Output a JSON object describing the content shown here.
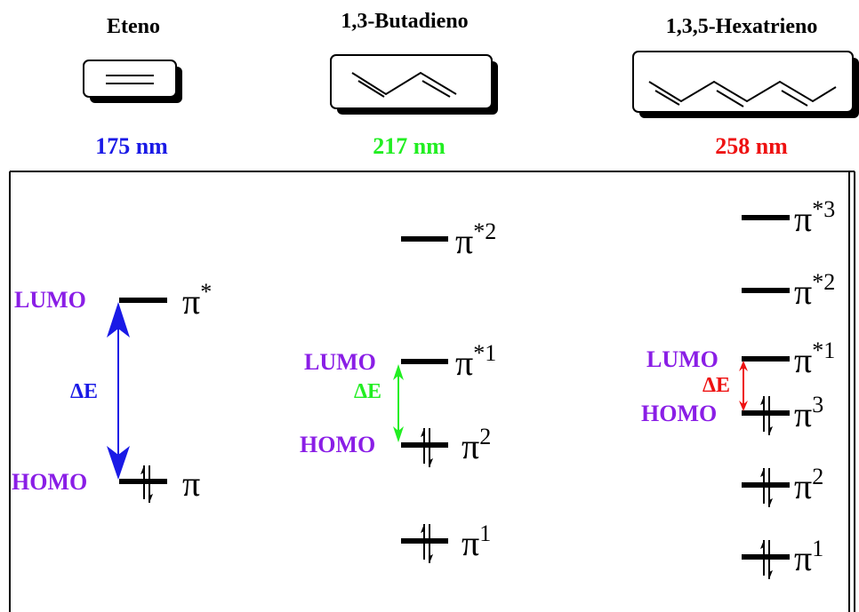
{
  "colors": {
    "ethene": "#1a1ae6",
    "butadiene": "#22ee22",
    "hexatriene": "#ee1111",
    "fmo": "#8a1ee6",
    "ink": "#000000"
  },
  "molecules": [
    {
      "name": "Eteno",
      "wavelength": "175 nm",
      "structure": "double-bond-icon"
    },
    {
      "name": "1,3-Butadieno",
      "wavelength": "217 nm",
      "structure": "butadiene-skeleton-icon"
    },
    {
      "name": "1,3,5-Hexatrieno",
      "wavelength": "258 nm",
      "structure": "hexatriene-skeleton-icon"
    }
  ],
  "diagram": {
    "lumo_label": "LUMO",
    "homo_label": "HOMO",
    "delta_e_label": "ΔE",
    "ethene": {
      "levels": [
        {
          "symbol": "π",
          "sup": "*",
          "occupied": false
        },
        {
          "symbol": "π",
          "sup": "",
          "occupied": true
        }
      ]
    },
    "butadiene": {
      "levels": [
        {
          "symbol": "π",
          "sup": "*2",
          "occupied": false
        },
        {
          "symbol": "π",
          "sup": "*1",
          "occupied": false
        },
        {
          "symbol": "π",
          "sup": "2",
          "occupied": true
        },
        {
          "symbol": "π",
          "sup": "1",
          "occupied": true
        }
      ]
    },
    "hexatriene": {
      "levels": [
        {
          "symbol": "π",
          "sup": "*3",
          "occupied": false
        },
        {
          "symbol": "π",
          "sup": "*2",
          "occupied": false
        },
        {
          "symbol": "π",
          "sup": "*1",
          "occupied": false
        },
        {
          "symbol": "π",
          "sup": "3",
          "occupied": true
        },
        {
          "symbol": "π",
          "sup": "2",
          "occupied": true
        },
        {
          "symbol": "π",
          "sup": "1",
          "occupied": true
        }
      ]
    }
  }
}
